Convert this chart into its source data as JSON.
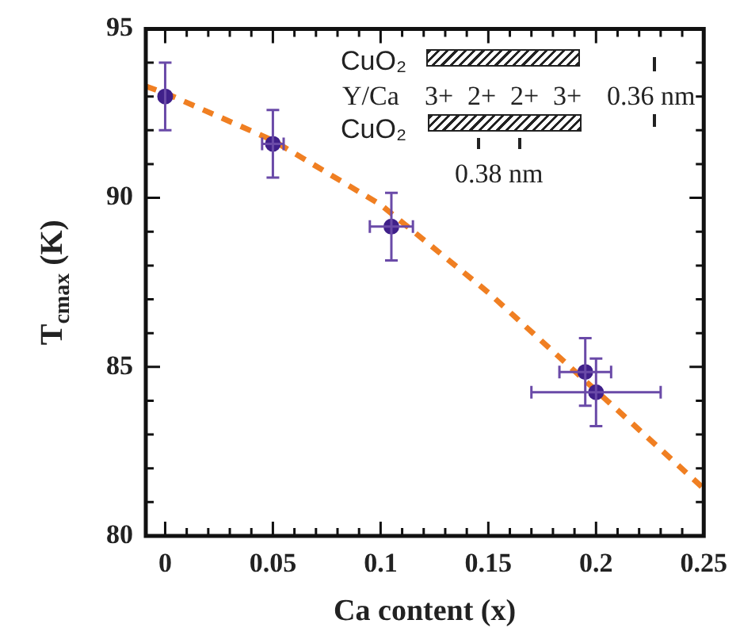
{
  "chart_data": {
    "type": "scatter",
    "xlabel": "Ca content (x)",
    "ylabel": "T$_{cmax}$ (K)",
    "xlim": [
      -0.009,
      0.25
    ],
    "ylim": [
      80,
      95
    ],
    "xticks": [
      0,
      {
        "value": 0.01,
        "label": null
      },
      {
        "value": 0.02,
        "label": null
      },
      {
        "value": 0.03,
        "label": null
      },
      {
        "value": 0.04,
        "label": null
      },
      0.05,
      {
        "value": 0.06,
        "label": null
      },
      {
        "value": 0.07,
        "label": null
      },
      {
        "value": 0.08,
        "label": null
      },
      {
        "value": 0.09,
        "label": null
      },
      0.1,
      {
        "value": 0.11,
        "label": null
      },
      {
        "value": 0.12,
        "label": null
      },
      {
        "value": 0.13,
        "label": null
      },
      {
        "value": 0.14,
        "label": null
      },
      0.15,
      {
        "value": 0.16,
        "label": null
      },
      {
        "value": 0.17,
        "label": null
      },
      {
        "value": 0.18,
        "label": null
      },
      {
        "value": 0.19,
        "label": null
      },
      0.2,
      {
        "value": 0.21,
        "label": null
      },
      {
        "value": 0.22,
        "label": null
      },
      {
        "value": 0.23,
        "label": null
      },
      {
        "value": 0.24,
        "label": null
      },
      0.25
    ],
    "yticks": [
      80,
      {
        "value": 81,
        "label": null
      },
      {
        "value": 82,
        "label": null
      },
      {
        "value": 83,
        "label": null
      },
      {
        "value": 84,
        "label": null
      },
      85,
      {
        "value": 86,
        "label": null
      },
      {
        "value": 87,
        "label": null
      },
      {
        "value": 88,
        "label": null
      },
      {
        "value": 89,
        "label": null
      },
      90,
      {
        "value": 91,
        "label": null
      },
      {
        "value": 92,
        "label": null
      },
      {
        "value": 93,
        "label": null
      },
      {
        "value": 94,
        "label": null
      },
      95
    ],
    "grid": false,
    "legend": false,
    "marker": "circle",
    "annotations": [
      "CuO₂",
      "Y/Ca",
      "CuO₂",
      "3+",
      "2+",
      "2+",
      "3+",
      "0.36 nm",
      "0.38 nm"
    ],
    "series": [
      {
        "type": "scatter",
        "color": "#40208a",
        "x": [
          0,
          0.05,
          0.105,
          0.195,
          0.2
        ],
        "values": [
          93.0,
          91.6,
          89.15,
          84.85,
          84.25
        ],
        "errors": [
          1,
          1,
          1,
          1,
          1
        ],
        "xerrors": [
          null,
          0.005,
          0.01,
          0.012,
          0.03
        ]
      },
      {
        "type": "line",
        "color": "#f07f22",
        "line_style": "dashed",
        "marker": "none",
        "x": [
          -0.009,
          0,
          0.05,
          0.1,
          0.15,
          0.2,
          0.25
        ],
        "values": [
          93.3,
          93.1,
          91.7,
          89.8,
          87.2,
          84.3,
          81.4
        ]
      }
    ]
  }
}
